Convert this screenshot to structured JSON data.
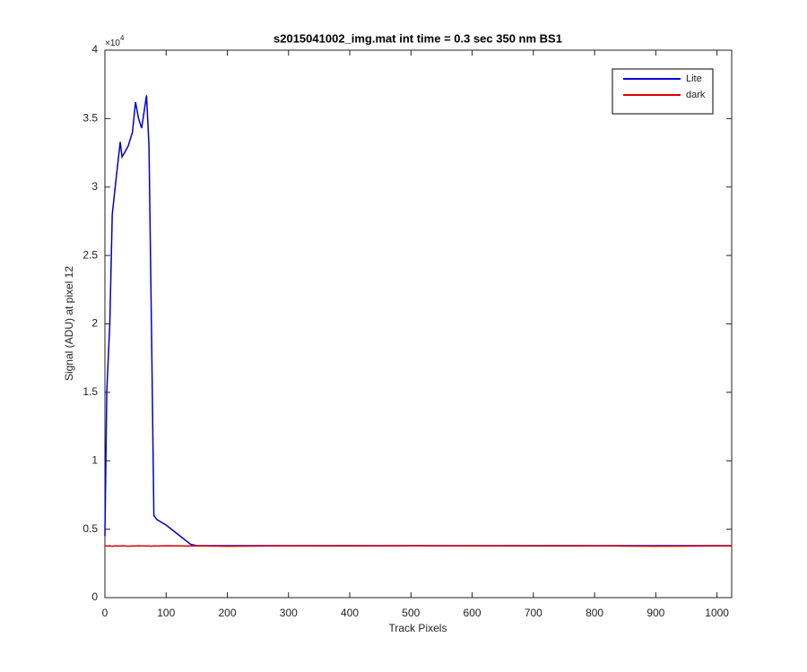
{
  "chart_data": {
    "type": "line",
    "title": "s2015041002_img.mat int time = 0.3 sec  350 nm BS1",
    "x_label": "Track Pixels",
    "y_label": "Signal (ADU) at pixel 12",
    "y_multiplier_base": "×10",
    "y_multiplier_exponent": "4",
    "x": [
      0,
      3,
      8,
      12,
      18,
      25,
      28,
      32,
      38,
      45,
      50,
      55,
      60,
      68,
      72,
      76,
      80,
      85,
      100,
      120,
      140,
      150,
      200,
      300,
      400,
      500,
      600,
      700,
      800,
      900,
      1024
    ],
    "series": [
      {
        "name": "Lite",
        "color": "#0000cc",
        "values": [
          0.45,
          1.5,
          2.0,
          2.8,
          3.05,
          3.33,
          3.22,
          3.25,
          3.3,
          3.4,
          3.62,
          3.5,
          3.43,
          3.67,
          3.3,
          2.0,
          0.6,
          0.57,
          0.53,
          0.46,
          0.39,
          0.38,
          0.38,
          0.38,
          0.38,
          0.38,
          0.38,
          0.38,
          0.38,
          0.38,
          0.38
        ]
      },
      {
        "name": "dark",
        "color": "#dd0000",
        "values": [
          0.378,
          0.377,
          0.379,
          0.376,
          0.378,
          0.377,
          0.379,
          0.378,
          0.376,
          0.378,
          0.377,
          0.379,
          0.378,
          0.377,
          0.378,
          0.376,
          0.378,
          0.377,
          0.379,
          0.378,
          0.377,
          0.378,
          0.376,
          0.378,
          0.377,
          0.379,
          0.378,
          0.377,
          0.378,
          0.376,
          0.378
        ]
      }
    ],
    "xlim": [
      0,
      1024
    ],
    "xticks": [
      0,
      100,
      200,
      300,
      400,
      500,
      600,
      700,
      800,
      900,
      1000
    ],
    "ylim": [
      0,
      4
    ],
    "yticks": [
      0,
      0.5,
      1,
      1.5,
      2,
      2.5,
      3,
      3.5,
      4
    ],
    "legend": "top-right",
    "grid": false
  }
}
